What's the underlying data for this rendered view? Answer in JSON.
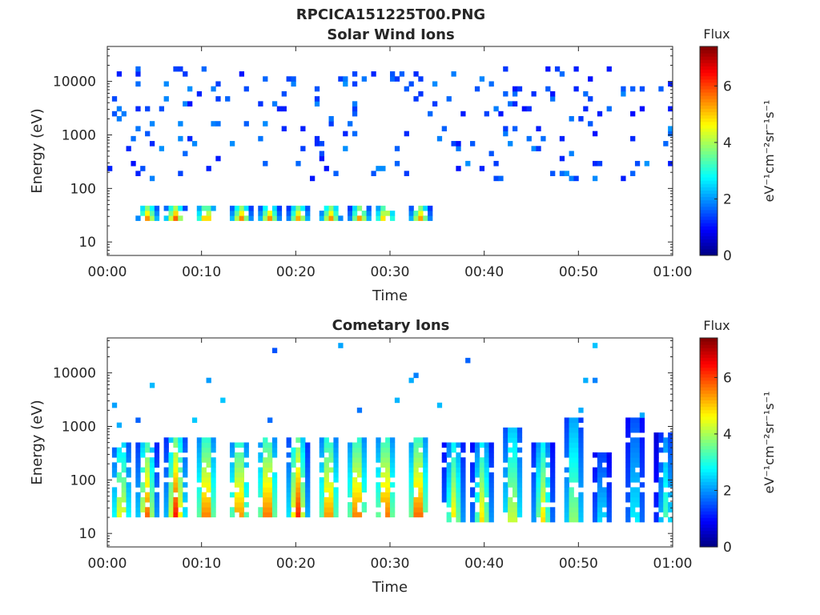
{
  "figure": {
    "suptitle": "RPCICA151225T00.PNG"
  },
  "colorbar": {
    "title": "Flux",
    "unit_label": "eV⁻¹cm⁻²sr⁻¹s⁻¹",
    "range": [
      0,
      7.4
    ],
    "ticks": [
      0,
      2,
      4,
      6
    ],
    "colormap": "jet"
  },
  "chart_data": [
    {
      "type": "heatmap",
      "title": "Solar Wind Ions",
      "xlabel": "Time",
      "ylabel": "Energy (eV)",
      "x_ticks": [
        "00:00",
        "00:10",
        "00:20",
        "00:30",
        "00:40",
        "00:50",
        "01:00"
      ],
      "x_range_minutes": [
        0,
        60
      ],
      "y_scale": "log",
      "y_range_eV": [
        5.6,
        45000
      ],
      "y_ticks": [
        10,
        100,
        1000,
        10000
      ],
      "grid": false,
      "pulse_centers_minutes": [
        4.3,
        7.2,
        10.5,
        14.2,
        17.2,
        20.3,
        23.7,
        26.8,
        29.5,
        33.2
      ],
      "clusters": [
        {
          "x_center_min": 4.3,
          "energy_low_eV": 25,
          "energy_high_eV": 50,
          "peak_flux": 6.0
        },
        {
          "x_center_min": 7.2,
          "energy_low_eV": 25,
          "energy_high_eV": 50,
          "peak_flux": 6.4
        },
        {
          "x_center_min": 10.5,
          "energy_low_eV": 25,
          "energy_high_eV": 50,
          "peak_flux": 6.2
        },
        {
          "x_center_min": 14.2,
          "energy_low_eV": 25,
          "energy_high_eV": 50,
          "peak_flux": 6.1
        },
        {
          "x_center_min": 17.2,
          "energy_low_eV": 25,
          "energy_high_eV": 50,
          "peak_flux": 6.0
        },
        {
          "x_center_min": 20.3,
          "energy_low_eV": 25,
          "energy_high_eV": 50,
          "peak_flux": 5.8
        },
        {
          "x_center_min": 23.7,
          "energy_low_eV": 25,
          "energy_high_eV": 50,
          "peak_flux": 6.0
        },
        {
          "x_center_min": 26.8,
          "energy_low_eV": 25,
          "energy_high_eV": 50,
          "peak_flux": 5.9
        },
        {
          "x_center_min": 29.5,
          "energy_low_eV": 25,
          "energy_high_eV": 50,
          "peak_flux": 6.1
        },
        {
          "x_center_min": 33.2,
          "energy_low_eV": 25,
          "energy_high_eV": 50,
          "peak_flux": 5.9
        }
      ],
      "background": {
        "energy_range_eV": [
          150,
          20000
        ],
        "flux_range": [
          1.0,
          2.0
        ],
        "description": "sparse scattered counts"
      }
    },
    {
      "type": "heatmap",
      "title": "Cometary Ions",
      "xlabel": "Time",
      "ylabel": "Energy (eV)",
      "x_ticks": [
        "00:00",
        "00:10",
        "00:20",
        "00:30",
        "00:40",
        "00:50",
        "01:00"
      ],
      "x_range_minutes": [
        0,
        60
      ],
      "y_scale": "log",
      "y_range_eV": [
        5.6,
        45000
      ],
      "y_ticks": [
        10,
        100,
        1000,
        10000
      ],
      "grid": false,
      "pulse_centers_minutes": [
        1.5,
        4.2,
        7.3,
        10.5,
        14.0,
        17.0,
        20.2,
        23.5,
        26.5,
        29.5,
        33.0,
        36.8,
        39.8,
        43.0,
        46.2,
        49.5,
        52.5,
        56.0,
        59.3
      ],
      "clusters": [
        {
          "x_center_min": 1.5,
          "energy_low_eV": 20,
          "energy_high_eV": 500,
          "peak_flux": 5.3
        },
        {
          "x_center_min": 4.2,
          "energy_low_eV": 20,
          "energy_high_eV": 500,
          "peak_flux": 6.0
        },
        {
          "x_center_min": 7.3,
          "energy_low_eV": 20,
          "energy_high_eV": 600,
          "peak_flux": 6.6
        },
        {
          "x_center_min": 10.5,
          "energy_low_eV": 20,
          "energy_high_eV": 600,
          "peak_flux": 6.6
        },
        {
          "x_center_min": 14.0,
          "energy_low_eV": 20,
          "energy_high_eV": 550,
          "peak_flux": 6.4
        },
        {
          "x_center_min": 17.0,
          "energy_low_eV": 20,
          "energy_high_eV": 600,
          "peak_flux": 6.7
        },
        {
          "x_center_min": 20.2,
          "energy_low_eV": 20,
          "energy_high_eV": 600,
          "peak_flux": 6.5
        },
        {
          "x_center_min": 23.5,
          "energy_low_eV": 20,
          "energy_high_eV": 600,
          "peak_flux": 6.4
        },
        {
          "x_center_min": 26.5,
          "energy_low_eV": 20,
          "energy_high_eV": 600,
          "peak_flux": 6.6
        },
        {
          "x_center_min": 29.5,
          "energy_low_eV": 20,
          "energy_high_eV": 600,
          "peak_flux": 6.7
        },
        {
          "x_center_min": 33.0,
          "energy_low_eV": 20,
          "energy_high_eV": 600,
          "peak_flux": 6.8
        },
        {
          "x_center_min": 36.8,
          "energy_low_eV": 18,
          "energy_high_eV": 500,
          "peak_flux": 5.0
        },
        {
          "x_center_min": 39.8,
          "energy_low_eV": 18,
          "energy_high_eV": 500,
          "peak_flux": 5.0
        },
        {
          "x_center_min": 43.0,
          "energy_low_eV": 18,
          "energy_high_eV": 1000,
          "peak_flux": 5.0
        },
        {
          "x_center_min": 46.2,
          "energy_low_eV": 18,
          "energy_high_eV": 500,
          "peak_flux": 5.0
        },
        {
          "x_center_min": 49.5,
          "energy_low_eV": 18,
          "energy_high_eV": 1500,
          "peak_flux": 4.5
        },
        {
          "x_center_min": 52.5,
          "energy_low_eV": 18,
          "energy_high_eV": 300,
          "peak_flux": 3.0
        },
        {
          "x_center_min": 56.0,
          "energy_low_eV": 18,
          "energy_high_eV": 1500,
          "peak_flux": 3.2
        },
        {
          "x_center_min": 59.3,
          "energy_low_eV": 18,
          "energy_high_eV": 700,
          "peak_flux": 3.5
        }
      ]
    }
  ]
}
